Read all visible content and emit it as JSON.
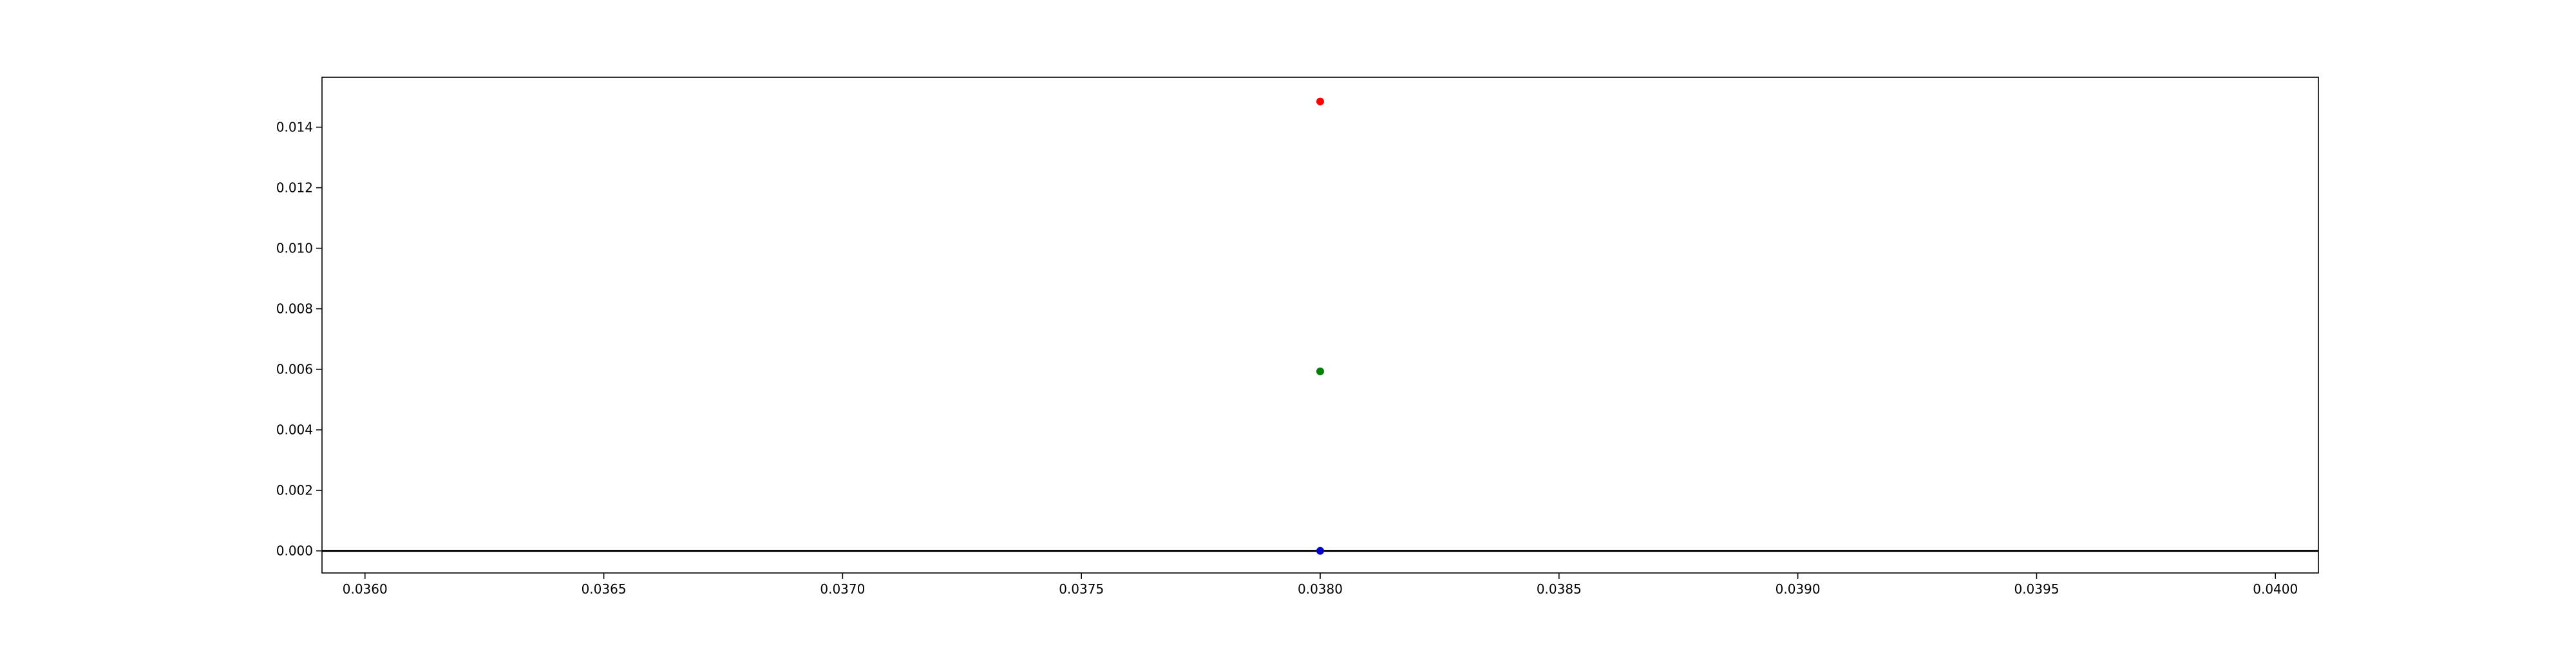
{
  "chart_data": {
    "type": "scatter",
    "title": "",
    "xlabel": "",
    "ylabel": "",
    "xlim": [
      0.03591,
      0.04009
    ],
    "ylim": [
      -0.00073,
      0.01565
    ],
    "x_ticks": [
      0.036,
      0.0365,
      0.037,
      0.0375,
      0.038,
      0.0385,
      0.039,
      0.0395,
      0.04
    ],
    "x_tick_labels": [
      "0.0360",
      "0.0365",
      "0.0370",
      "0.0375",
      "0.0380",
      "0.0385",
      "0.0390",
      "0.0395",
      "0.0400"
    ],
    "y_ticks": [
      0,
      0.002,
      0.004,
      0.006,
      0.008,
      0.01,
      0.012,
      0.014
    ],
    "y_tick_labels": [
      "0.000",
      "0.002",
      "0.004",
      "0.006",
      "0.008",
      "0.010",
      "0.012",
      "0.014"
    ],
    "grid": false,
    "hline": {
      "y": 0,
      "color": "#000000"
    },
    "points": [
      {
        "x": 0.038,
        "y": 0.01485,
        "color": "#ff0000"
      },
      {
        "x": 0.038,
        "y": 0.00593,
        "color": "#008000"
      },
      {
        "x": 0.038,
        "y": 0.0,
        "color": "#0000cc"
      }
    ]
  }
}
